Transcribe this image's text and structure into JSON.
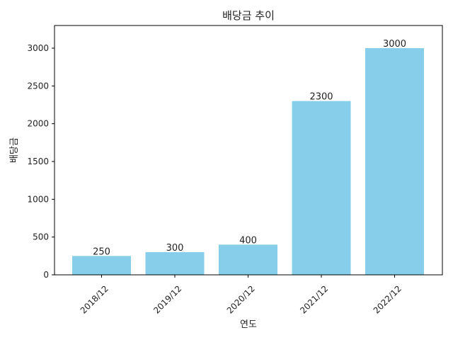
{
  "chart_data": {
    "type": "bar",
    "title": "배당금 추이",
    "xlabel": "연도",
    "ylabel": "배당금",
    "categories": [
      "2018/12",
      "2019/12",
      "2020/12",
      "2021/12",
      "2022/12"
    ],
    "values": [
      250,
      300,
      400,
      2300,
      3000
    ],
    "data_labels": [
      "250",
      "300",
      "400",
      "2300",
      "3000"
    ],
    "ylim": [
      0,
      3300
    ],
    "yticks": [
      0,
      500,
      1000,
      1500,
      2000,
      2500,
      3000
    ],
    "ytick_labels": [
      "0",
      "500",
      "1000",
      "1500",
      "2000",
      "2500",
      "3000"
    ],
    "bar_color": "#87ceeb",
    "grid": false,
    "legend": "none",
    "xtick_rotation": "45 degrees"
  }
}
